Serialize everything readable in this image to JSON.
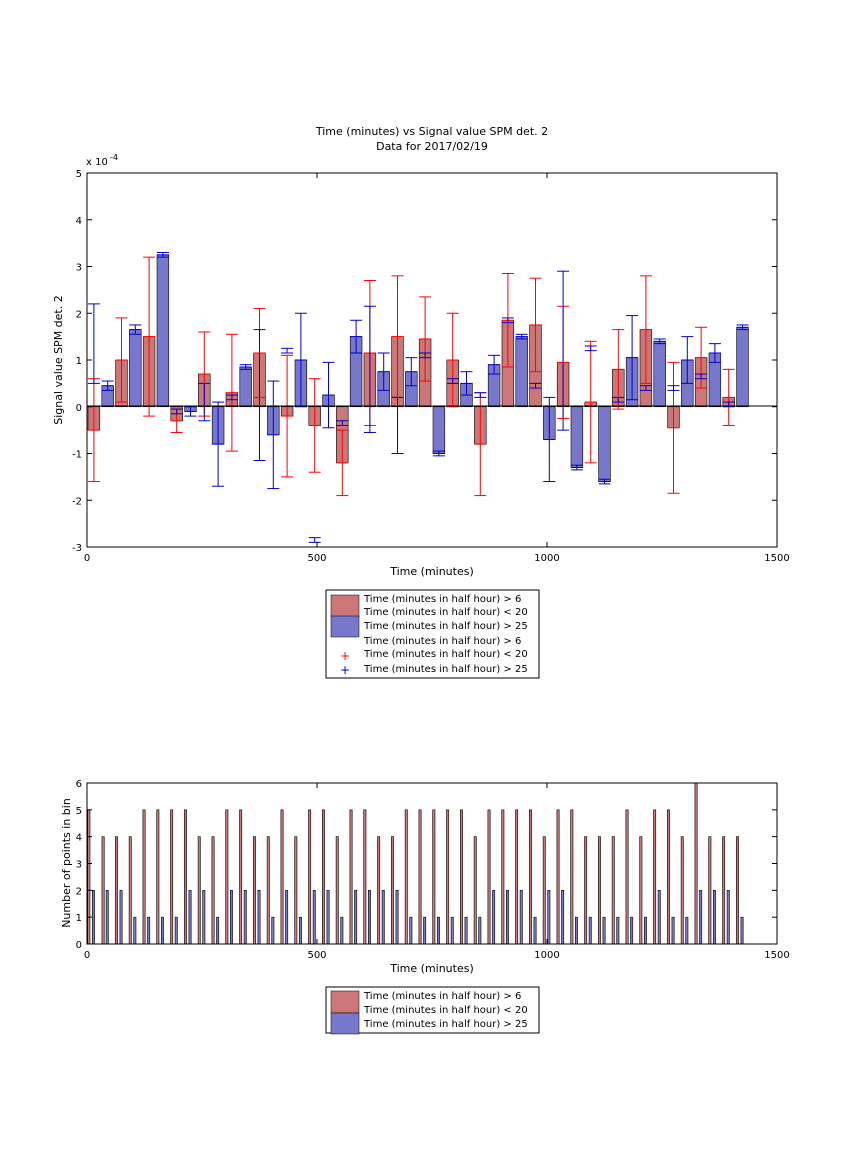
{
  "chart_data": [
    {
      "type": "bar",
      "title": "Time (minutes) vs Signal value SPM det. 2",
      "subtitle": "Data for 2017/02/19",
      "xlabel": "Time (minutes)",
      "ylabel": "Signal value SPM det. 2",
      "exponent_label": "x 10",
      "exponent_power": "-4",
      "xlim": [
        0,
        1500
      ],
      "ylim": [
        -3,
        5
      ],
      "xticks": [
        0,
        500,
        1000,
        1500
      ],
      "yticks": [
        -3,
        -2,
        -1,
        0,
        1,
        2,
        3,
        4,
        5
      ],
      "grid": false,
      "legend_position": "below",
      "legend": [
        {
          "label": "Time (minutes in half hour) > 6",
          "label2": "Time (minutes in half hour) < 20",
          "kind": "bar",
          "color": "#cc7777"
        },
        {
          "label": "Time (minutes in half hour) > 25",
          "kind": "bar",
          "color": "#7777cc"
        },
        {
          "label": "Time (minutes in half hour) > 6",
          "label2": "Time (minutes in half hour) < 20",
          "kind": "plus",
          "color": "#ff0000"
        },
        {
          "label": "Time (minutes in half hour) > 25",
          "kind": "plus",
          "color": "#0000cc"
        }
      ],
      "series": [
        {
          "name": "Time (minutes in half hour) > 6 / Time (minutes in half hour) < 20",
          "color": "#cc7777",
          "err_color": "#ff0000",
          "x": [
            15,
            75,
            135,
            195,
            255,
            315,
            375,
            435,
            495,
            555,
            615,
            675,
            735,
            795,
            855,
            915,
            975,
            1035,
            1095,
            1155,
            1215,
            1275,
            1335,
            1395
          ],
          "values": [
            -0.5,
            1.0,
            1.5,
            -0.3,
            0.7,
            0.3,
            1.15,
            -0.2,
            -0.4,
            -1.2,
            1.15,
            1.5,
            1.45,
            1.0,
            -0.8,
            1.85,
            1.75,
            0.95,
            0.1,
            0.8,
            1.65,
            -0.45,
            1.05,
            0.2
          ],
          "err": [
            1.1,
            0.9,
            1.7,
            0.25,
            0.9,
            1.25,
            0.95,
            1.3,
            1.0,
            0.7,
            1.55,
            1.3,
            0.9,
            1.0,
            1.1,
            1.0,
            1.0,
            1.2,
            1.3,
            0.85,
            1.15,
            1.4,
            0.65,
            0.6
          ]
        },
        {
          "name": "Time (minutes in half hour) > 25",
          "color": "#7777cc",
          "err_color": "#0000cc",
          "x": [
            45,
            105,
            165,
            225,
            285,
            345,
            405,
            465,
            525,
            585,
            645,
            705,
            765,
            825,
            885,
            945,
            1005,
            1065,
            1125,
            1185,
            1245,
            1305,
            1365,
            1425
          ],
          "values": [
            0.45,
            1.65,
            3.25,
            -0.1,
            -0.8,
            0.85,
            -0.6,
            1.0,
            0.25,
            1.5,
            0.75,
            0.75,
            -1.0,
            0.5,
            0.9,
            1.5,
            -0.7,
            -1.3,
            -1.6,
            1.05,
            1.4,
            1.0,
            1.15,
            1.7
          ],
          "err": [
            0.1,
            0.1,
            0.05,
            0.1,
            0.9,
            0.05,
            1.15,
            1.0,
            0.7,
            0.35,
            0.4,
            0.3,
            0.05,
            0.25,
            0.2,
            0.05,
            0.9,
            0.05,
            0.05,
            0.9,
            0.05,
            0.5,
            0.2,
            0.05
          ]
        }
      ],
      "series_overlay": [
        {
          "x": 15,
          "value": 1.35,
          "err": 0.85
        },
        {
          "x": 195,
          "value": -0.1,
          "err": 0.05
        },
        {
          "x": 255,
          "value": 0.1,
          "err": 0.4
        },
        {
          "x": 315,
          "value": 0.2,
          "err": 0.05
        },
        {
          "x": 375,
          "value": 0.25,
          "err": 1.4
        },
        {
          "x": 435,
          "value": 1.2,
          "err": 0.05
        },
        {
          "x": 495,
          "value": -2.85,
          "err": 0.05
        },
        {
          "x": 555,
          "value": -0.35,
          "err": 0.05
        },
        {
          "x": 615,
          "value": 0.8,
          "err": 1.35
        },
        {
          "x": 675,
          "value": -0.4,
          "err": 0.6
        },
        {
          "x": 735,
          "value": 1.1,
          "err": 0.05
        },
        {
          "x": 795,
          "value": 0.55,
          "err": 0.05
        },
        {
          "x": 855,
          "value": 0.25,
          "err": 0.05
        },
        {
          "x": 915,
          "value": 1.85,
          "err": 0.05
        },
        {
          "x": 975,
          "value": 0.45,
          "err": 0.05
        },
        {
          "x": 1035,
          "value": 1.2,
          "err": 1.7
        },
        {
          "x": 1095,
          "value": 1.25,
          "err": 0.05
        },
        {
          "x": 1155,
          "value": 0.15,
          "err": 0.05
        },
        {
          "x": 1215,
          "value": 0.4,
          "err": 0.05
        },
        {
          "x": 1275,
          "value": 0.4,
          "err": 0.05
        },
        {
          "x": 1335,
          "value": 0.65,
          "err": 0.05
        },
        {
          "x": 1395,
          "value": 0.05,
          "err": 0.05
        }
      ]
    },
    {
      "type": "bar",
      "title": "",
      "xlabel": "Time (minutes)",
      "ylabel": "Number of points in bin",
      "xlim": [
        0,
        1500
      ],
      "ylim": [
        0,
        6
      ],
      "xticks": [
        0,
        500,
        1000,
        1500
      ],
      "yticks": [
        0,
        1,
        2,
        3,
        4,
        5,
        6
      ],
      "grid": false,
      "legend_position": "below",
      "legend": [
        {
          "label": "Time (minutes in half hour) > 6",
          "label2": "Time (minutes in half hour) < 20",
          "color": "#cc7777"
        },
        {
          "label": "Time (minutes in half hour) > 25",
          "color": "#7777cc"
        }
      ],
      "series": [
        {
          "name": "Time (minutes in half hour) > 6 / Time (minutes in half hour) < 20",
          "color": "#cc7777",
          "x": [
            4,
            35,
            64,
            94,
            124,
            154,
            184,
            214,
            244,
            274,
            304,
            334,
            364,
            394,
            424,
            454,
            484,
            514,
            544,
            574,
            604,
            634,
            664,
            694,
            724,
            754,
            784,
            814,
            844,
            874,
            904,
            934,
            964,
            994,
            1024,
            1054,
            1084,
            1114,
            1144,
            1174,
            1204,
            1234,
            1264,
            1294,
            1324,
            1354,
            1384,
            1414
          ],
          "values": [
            5,
            4,
            4,
            4,
            5,
            5,
            5,
            5,
            4,
            4,
            5,
            5,
            4,
            4,
            5,
            4,
            5,
            5,
            4,
            5,
            5,
            4,
            4,
            5,
            5,
            5,
            5,
            5,
            4,
            5,
            5,
            5,
            5,
            4,
            5,
            5,
            4,
            4,
            4,
            5,
            4,
            5,
            5,
            4,
            6,
            4,
            4,
            4
          ]
        },
        {
          "name": "Time (minutes in half hour) > 25",
          "color": "#7777cc",
          "x": [
            14,
            44,
            74,
            104,
            134,
            164,
            194,
            224,
            254,
            284,
            314,
            344,
            374,
            404,
            434,
            464,
            494,
            524,
            554,
            584,
            614,
            644,
            674,
            704,
            734,
            764,
            794,
            824,
            854,
            884,
            914,
            944,
            974,
            1004,
            1034,
            1064,
            1094,
            1124,
            1154,
            1184,
            1214,
            1244,
            1274,
            1304,
            1334,
            1364,
            1394,
            1424
          ],
          "values": [
            2,
            2,
            2,
            1,
            1,
            1,
            1,
            2,
            2,
            1,
            2,
            2,
            2,
            1,
            2,
            1,
            2,
            2,
            1,
            2,
            2,
            2,
            2,
            1,
            1,
            1,
            1,
            1,
            1,
            2,
            2,
            2,
            1,
            2,
            2,
            1,
            1,
            1,
            1,
            1,
            1,
            2,
            1,
            1,
            2,
            2,
            2,
            1
          ]
        }
      ]
    }
  ]
}
